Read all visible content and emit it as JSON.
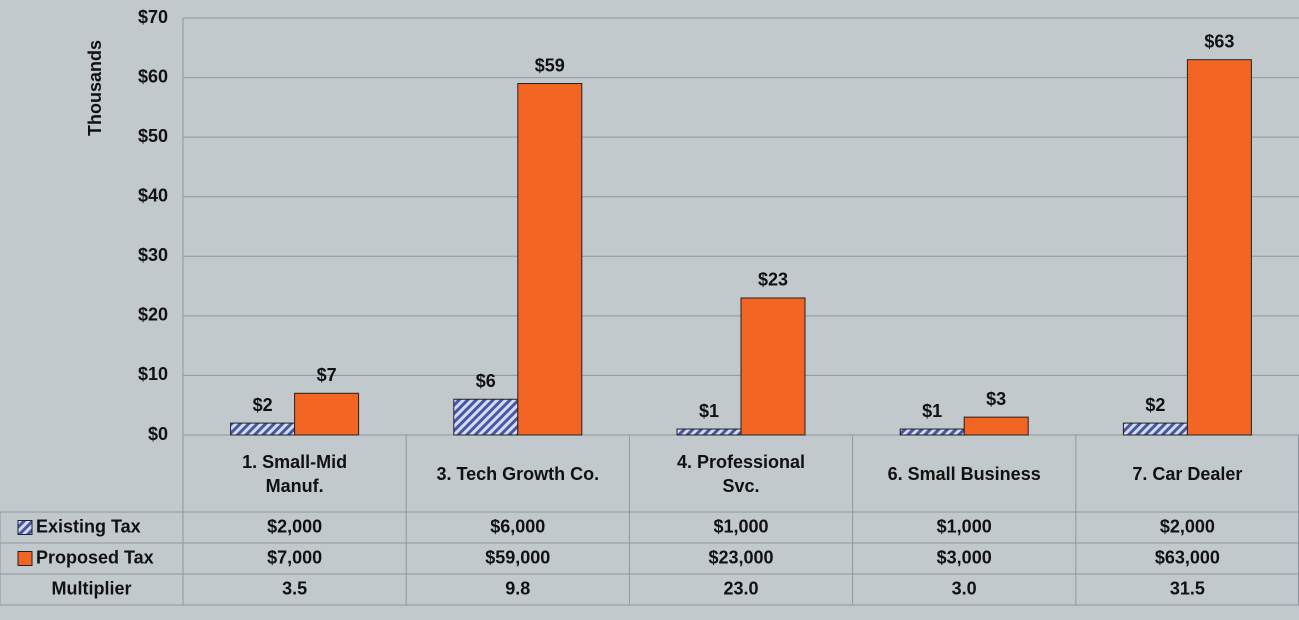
{
  "chart_data": {
    "type": "bar",
    "y_axis_label": "Thousands",
    "categories": [
      "1. Small-Mid Manuf.",
      "3. Tech Growth Co.",
      "4. Professional Svc.",
      "6. Small Business",
      "7. Car Dealer"
    ],
    "series": [
      {
        "name": "Existing Tax",
        "color": "#4656a8",
        "pattern": "hatch",
        "values": [
          2,
          6,
          1,
          1,
          2
        ],
        "value_labels": [
          "$2",
          "$6",
          "$1",
          "$1",
          "$2"
        ]
      },
      {
        "name": "Proposed Tax",
        "color": "#f26522",
        "values": [
          7,
          59,
          23,
          3,
          63
        ],
        "value_labels": [
          "$7",
          "$59",
          "$23",
          "$3",
          "$63"
        ]
      }
    ],
    "ylim": [
      0,
      70
    ],
    "yticks": [
      {
        "value": 0,
        "label": "$0"
      },
      {
        "value": 10,
        "label": "$10"
      },
      {
        "value": 20,
        "label": "$20"
      },
      {
        "value": 30,
        "label": "$30"
      },
      {
        "value": 40,
        "label": "$40"
      },
      {
        "value": 50,
        "label": "$50"
      },
      {
        "value": 60,
        "label": "$60"
      },
      {
        "value": 70,
        "label": "$70"
      }
    ],
    "grid": true,
    "table": {
      "rows": [
        {
          "cells": [
            "$2,000",
            "$6,000",
            "$1,000",
            "$1,000",
            "$2,000"
          ]
        },
        {
          "cells": [
            "$7,000",
            "$59,000",
            "$23,000",
            "$3,000",
            "$63,000"
          ]
        },
        {
          "label": "Multiplier",
          "cells": [
            "3.5",
            "9.8",
            "23.0",
            "3.0",
            "31.5"
          ]
        }
      ]
    }
  }
}
